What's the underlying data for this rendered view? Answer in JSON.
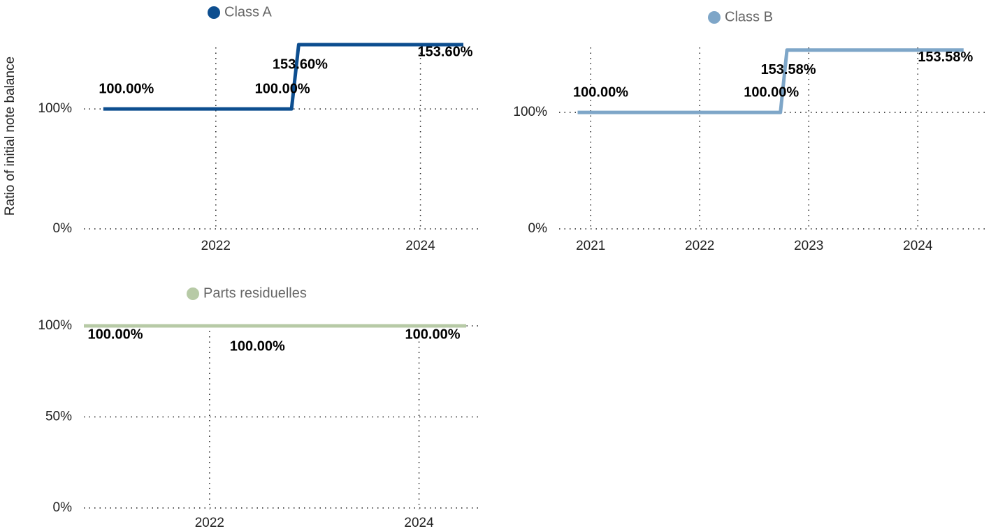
{
  "chart_data": [
    {
      "type": "line",
      "y_label": "Ratio of initial note balance",
      "x": [
        2020.9,
        2022.74,
        2022.81,
        2024.42
      ],
      "series": [
        {
          "name": "Class A",
          "color": "#0d4e8f",
          "values": [
            100,
            100,
            153.6,
            153.6
          ],
          "value_labels": [
            "100.00%",
            "100.00%",
            "153.60%",
            "153.60%"
          ]
        }
      ],
      "xlim": [
        2020.71,
        2024.57
      ],
      "xticks": [
        2022,
        2024
      ],
      "ylim": [
        0,
        160
      ],
      "yticks": [
        {
          "value": 0,
          "label": "0%"
        },
        {
          "value": 100,
          "label": "100%"
        }
      ],
      "grid": true
    },
    {
      "type": "line",
      "x": [
        2020.88,
        2022.74,
        2022.8,
        2024.42
      ],
      "series": [
        {
          "name": "Class B",
          "color": "#7ea6c8",
          "values": [
            100,
            100,
            153.58,
            153.58
          ],
          "value_labels": [
            "100.00%",
            "100.00%",
            "153.58%",
            "153.58%"
          ]
        }
      ],
      "xlim": [
        2020.71,
        2024.62
      ],
      "xticks": [
        2021,
        2022,
        2023,
        2024
      ],
      "ylim": [
        0,
        160
      ],
      "yticks": [
        {
          "value": 0,
          "label": "0%"
        },
        {
          "value": 100,
          "label": "100%"
        }
      ],
      "grid": true
    },
    {
      "type": "line",
      "x": [
        2020.8,
        2022.65,
        2024.45
      ],
      "series": [
        {
          "name": "Parts residuelles",
          "color": "#b7caa6",
          "values": [
            100,
            100,
            100
          ],
          "value_labels": [
            "100.00%",
            "100.00%",
            "100.00%"
          ]
        }
      ],
      "xlim": [
        2020.8,
        2024.57
      ],
      "xticks": [
        2022,
        2024
      ],
      "ylim": [
        0,
        100
      ],
      "yticks": [
        {
          "value": 0,
          "label": "0%"
        },
        {
          "value": 50,
          "label": "50%"
        },
        {
          "value": 100,
          "label": "100%"
        }
      ],
      "grid": true
    }
  ]
}
